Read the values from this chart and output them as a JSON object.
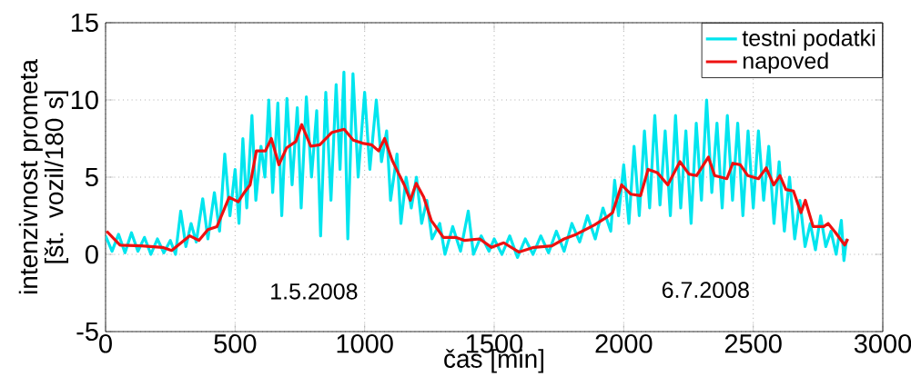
{
  "chart_data": {
    "type": "line",
    "xlabel": "čas [min]",
    "ylabel": "intenzivnost prometa [št. vozil/180 s]",
    "xlim": [
      0,
      3000
    ],
    "ylim": [
      -5,
      15
    ],
    "xticks": [
      0,
      500,
      1000,
      1500,
      2000,
      2500,
      3000
    ],
    "yticks": [
      -5,
      0,
      5,
      10,
      15
    ],
    "grid": true,
    "legend": "top right",
    "line_style": "solid",
    "marker": "none",
    "annotations": [
      "1.5.2008",
      "6.7.2008"
    ],
    "series": [
      {
        "name": "testni podatki",
        "color": "#00e5ee",
        "x": [
          0,
          25,
          50,
          75,
          100,
          125,
          150,
          175,
          200,
          225,
          250,
          270,
          290,
          310,
          330,
          350,
          375,
          395,
          420,
          440,
          460,
          480,
          500,
          515,
          530,
          545,
          565,
          580,
          600,
          615,
          630,
          645,
          665,
          680,
          700,
          720,
          740,
          755,
          775,
          795,
          815,
          830,
          850,
          870,
          890,
          905,
          920,
          935,
          955,
          975,
          1000,
          1020,
          1045,
          1065,
          1085,
          1100,
          1125,
          1140,
          1160,
          1180,
          1200,
          1220,
          1240,
          1260,
          1290,
          1310,
          1340,
          1370,
          1400,
          1420,
          1450,
          1480,
          1500,
          1530,
          1560,
          1590,
          1620,
          1650,
          1680,
          1710,
          1740,
          1770,
          1800,
          1830,
          1860,
          1890,
          1920,
          1950,
          1965,
          1980,
          2000,
          2020,
          2040,
          2060,
          2080,
          2100,
          2120,
          2140,
          2160,
          2180,
          2200,
          2220,
          2240,
          2260,
          2280,
          2300,
          2320,
          2340,
          2360,
          2380,
          2400,
          2420,
          2440,
          2460,
          2480,
          2500,
          2520,
          2540,
          2560,
          2580,
          2600,
          2620,
          2640,
          2660,
          2680,
          2700,
          2720,
          2740,
          2760,
          2780,
          2800,
          2820,
          2840,
          2850,
          2860
        ],
        "values": [
          1.2,
          0.2,
          1.3,
          0.1,
          1.4,
          0.2,
          1.1,
          0,
          1.0,
          0.1,
          0.9,
          0,
          2.8,
          0.5,
          2.0,
          0.8,
          3.6,
          1.0,
          4.0,
          1.5,
          6.5,
          2.5,
          5.5,
          2.0,
          7.5,
          3.0,
          9.0,
          3.5,
          7.0,
          5.0,
          10.0,
          4.0,
          9.8,
          2.5,
          10.1,
          4.5,
          9.5,
          3.0,
          10.2,
          5.0,
          9.3,
          1.2,
          10.5,
          3.5,
          11.0,
          5.5,
          11.8,
          1.0,
          11.7,
          5.0,
          10.5,
          5.5,
          10.0,
          6.0,
          8.0,
          3.5,
          6.5,
          2.0,
          5.0,
          3.0,
          5.0,
          2.0,
          3.5,
          1.0,
          2.0,
          0,
          1.8,
          0.2,
          2.8,
          0,
          1.2,
          0.2,
          1.0,
          0,
          1.2,
          -0.2,
          1.0,
          0,
          1.2,
          0.1,
          1.5,
          0.2,
          2.0,
          0.8,
          2.5,
          1.0,
          3.0,
          1.5,
          4.8,
          2.5,
          5.8,
          2.0,
          7.0,
          2.5,
          8.0,
          3.0,
          9.0,
          3.2,
          8.0,
          2.5,
          9.0,
          3.0,
          8.0,
          2.0,
          8.5,
          3.5,
          10.0,
          4.0,
          8.5,
          3.0,
          9.0,
          3.5,
          8.5,
          2.5,
          8.0,
          3.0,
          8.0,
          3.5,
          7.0,
          2.0,
          6.0,
          1.5,
          5.0,
          1.0,
          3.5,
          0.5,
          2.0,
          0.3,
          2.5,
          0.5,
          1.5,
          0,
          2.2,
          -0.4,
          1.0
        ]
      },
      {
        "name": "napoved",
        "color": "#ee1111",
        "x": [
          4,
          56,
          138,
          220,
          255,
          325,
          360,
          395,
          430,
          477,
          512,
          535,
          558,
          582,
          617,
          640,
          669,
          699,
          734,
          757,
          792,
          827,
          874,
          921,
          956,
          991,
          1026,
          1054,
          1077,
          1106,
          1129,
          1153,
          1176,
          1199,
          1228,
          1257,
          1304,
          1351,
          1386,
          1444,
          1490,
          1537,
          1595,
          1653,
          1723,
          1770,
          1817,
          1887,
          1934,
          1957,
          1992,
          2027,
          2065,
          2094,
          2129,
          2170,
          2217,
          2252,
          2281,
          2327,
          2351,
          2398,
          2421,
          2450,
          2479,
          2520,
          2550,
          2579,
          2603,
          2626,
          2655,
          2684,
          2701,
          2731,
          2772,
          2789,
          2818,
          2853,
          2865
        ],
        "values": [
          1.5,
          0.6,
          0.55,
          0.45,
          0.25,
          1.2,
          0.9,
          1.6,
          1.8,
          3.7,
          3.4,
          4.0,
          4.5,
          6.7,
          6.7,
          7.5,
          5.8,
          6.9,
          7.3,
          8.4,
          7.0,
          7.1,
          7.9,
          8.1,
          7.4,
          7.2,
          7.1,
          6.7,
          7.5,
          6.1,
          5.3,
          4.5,
          3.5,
          4.6,
          3.7,
          2.2,
          1.1,
          1.1,
          0.9,
          1.0,
          0.45,
          0.75,
          0.15,
          0.45,
          0.55,
          1.0,
          1.3,
          1.9,
          2.4,
          2.7,
          4.5,
          3.9,
          3.8,
          5.5,
          5.3,
          4.5,
          6.0,
          5.2,
          5.1,
          6.3,
          5.1,
          4.9,
          5.9,
          5.8,
          5.1,
          4.9,
          5.6,
          4.5,
          5.1,
          4.2,
          4.1,
          2.7,
          3.5,
          1.8,
          1.8,
          2.0,
          1.4,
          0.6,
          1.0
        ]
      }
    ]
  }
}
